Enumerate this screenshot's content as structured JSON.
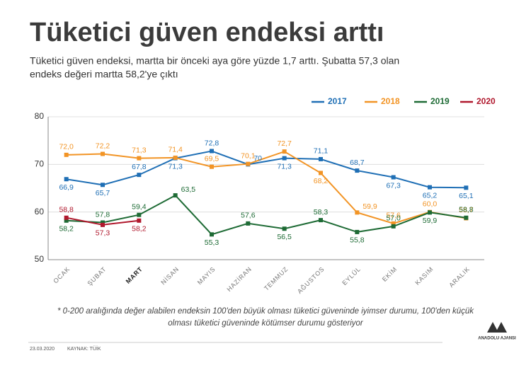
{
  "chart_data": {
    "type": "line",
    "title": "Tüketici güven endeksi arttı",
    "subtitle_lines": [
      "Tüketici güven endeksi, martta bir önceki aya göre yüzde 1,7 arttı. Şubatta 57,3 olan",
      "endeks değeri martta 58,2'ye çıktı"
    ],
    "categories": [
      "OCAK",
      "ŞUBAT",
      "MART",
      "NİSAN",
      "MAYIS",
      "HAZİRAN",
      "TEMMUZ",
      "AĞUSTOS",
      "EYLÜL",
      "EKİM",
      "KASIM",
      "ARALIK"
    ],
    "series": [
      {
        "name": "2017",
        "color": "#1f6fb5",
        "values": [
          66.9,
          65.7,
          67.8,
          71.3,
          72.8,
          70,
          71.3,
          71.1,
          68.7,
          67.3,
          65.2,
          65.1
        ],
        "value_labels": [
          "66,9",
          "65,7",
          "67,8",
          "71,3",
          "72,8",
          "70",
          "71,3",
          "71,1",
          "68,7",
          "67,3",
          "65,2",
          "65,1"
        ]
      },
      {
        "name": "2018",
        "color": "#f29425",
        "values": [
          72.0,
          72.2,
          71.3,
          71.4,
          69.5,
          70.1,
          72.7,
          68.2,
          59.9,
          57.6,
          60.0,
          58.7
        ],
        "value_labels": [
          "72,0",
          "72,2",
          "71,3",
          "71,4",
          "69,5",
          "70,1",
          "72,7",
          "68,2",
          "59,9",
          "57,6",
          "60,0",
          "58,7"
        ]
      },
      {
        "name": "2019",
        "color": "#1e6b35",
        "values": [
          58.2,
          57.8,
          59.4,
          63.5,
          55.3,
          57.6,
          56.5,
          58.3,
          55.8,
          57.0,
          59.9,
          58.8
        ],
        "value_labels": [
          "58,2",
          "57,8",
          "59,4",
          "63,5",
          "55,3",
          "57,6",
          "56,5",
          "58,3",
          "55,8",
          "57,0",
          "59,9",
          "58,8"
        ]
      },
      {
        "name": "2020",
        "color": "#b0182d",
        "values": [
          58.8,
          57.3,
          58.2,
          null,
          null,
          null,
          null,
          null,
          null,
          null,
          null,
          null
        ],
        "value_labels": [
          "58,8",
          "57,3",
          "58,2",
          null,
          null,
          null,
          null,
          null,
          null,
          null,
          null,
          null
        ]
      }
    ],
    "ylim": [
      50,
      80
    ],
    "yticks": [
      50,
      60,
      70,
      80
    ],
    "grid": true,
    "note_lines": [
      "* 0-200 aralığında değer alabilen endeksin 100'den büyük olması tüketici güveninde iyimser durumu, 100'den küçük",
      "olması tüketici güveninde kötümser durumu gösteriyor"
    ]
  },
  "footer": {
    "date": "23.03.2020",
    "source": "KAYNAK: TÜİK",
    "logo": "ANADOLU AJANSI"
  }
}
